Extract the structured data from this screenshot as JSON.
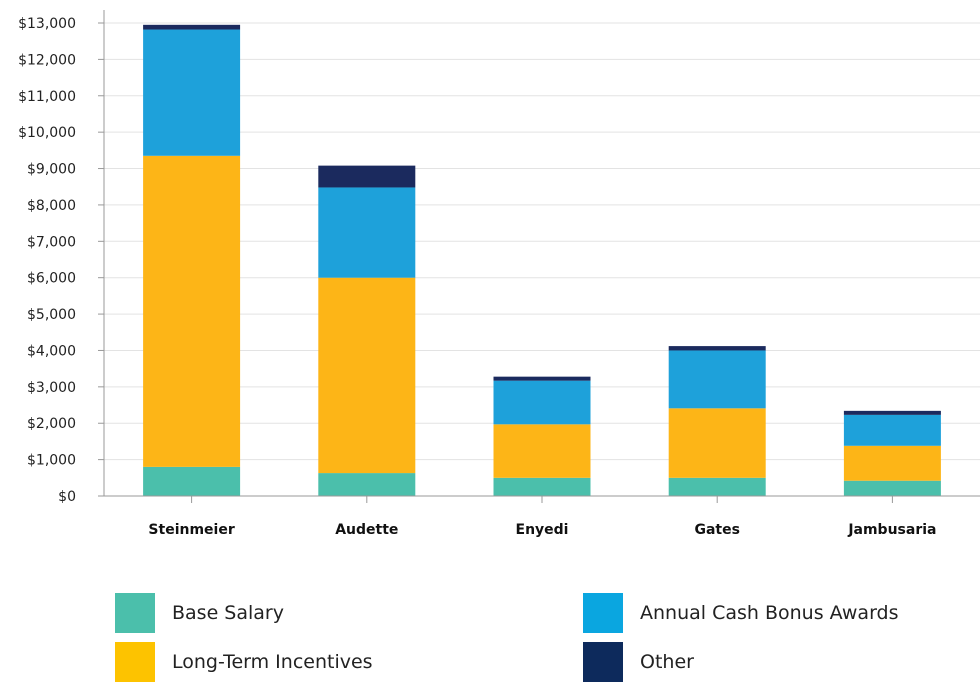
{
  "chart_data": {
    "type": "bar",
    "stacked": true,
    "title": "",
    "xlabel": "",
    "ylabel": "",
    "ylim": [
      0,
      13000
    ],
    "ytick_labels": [
      "$0",
      "$1,000",
      "$2,000",
      "$3,000",
      "$4,000",
      "$5,000",
      "$6,000",
      "$7,000",
      "$8,000",
      "$9,000",
      "$10,000",
      "$11,000",
      "$12,000",
      "$13,000"
    ],
    "categories": [
      "Steinmeier",
      "Audette",
      "Enyedi",
      "Gates",
      "Jambusaria"
    ],
    "grid": true,
    "legend_position": "bottom",
    "series": [
      {
        "name": "Base Salary",
        "color": "#4bbfab",
        "values": [
          800,
          630,
          500,
          500,
          420
        ]
      },
      {
        "name": "Long-Term Incentives",
        "color": "#fdb517",
        "values": [
          8550,
          5370,
          1470,
          1910,
          960
        ]
      },
      {
        "name": "Annual Cash Bonus Awards",
        "color": "#1ea1da",
        "values": [
          3470,
          2480,
          1200,
          1590,
          850
        ]
      },
      {
        "name": "Other",
        "color": "#1b2a5e",
        "values": [
          130,
          600,
          110,
          120,
          110
        ]
      }
    ]
  },
  "legend": {
    "items": [
      {
        "label": "Base Salary",
        "color": "#4bbfab"
      },
      {
        "label": "Annual Cash Bonus Awards",
        "color": "#0aa6e0"
      },
      {
        "label": "Long-Term Incentives",
        "color": "#fdc300"
      },
      {
        "label": "Other",
        "color": "#0d2a5c"
      }
    ]
  }
}
